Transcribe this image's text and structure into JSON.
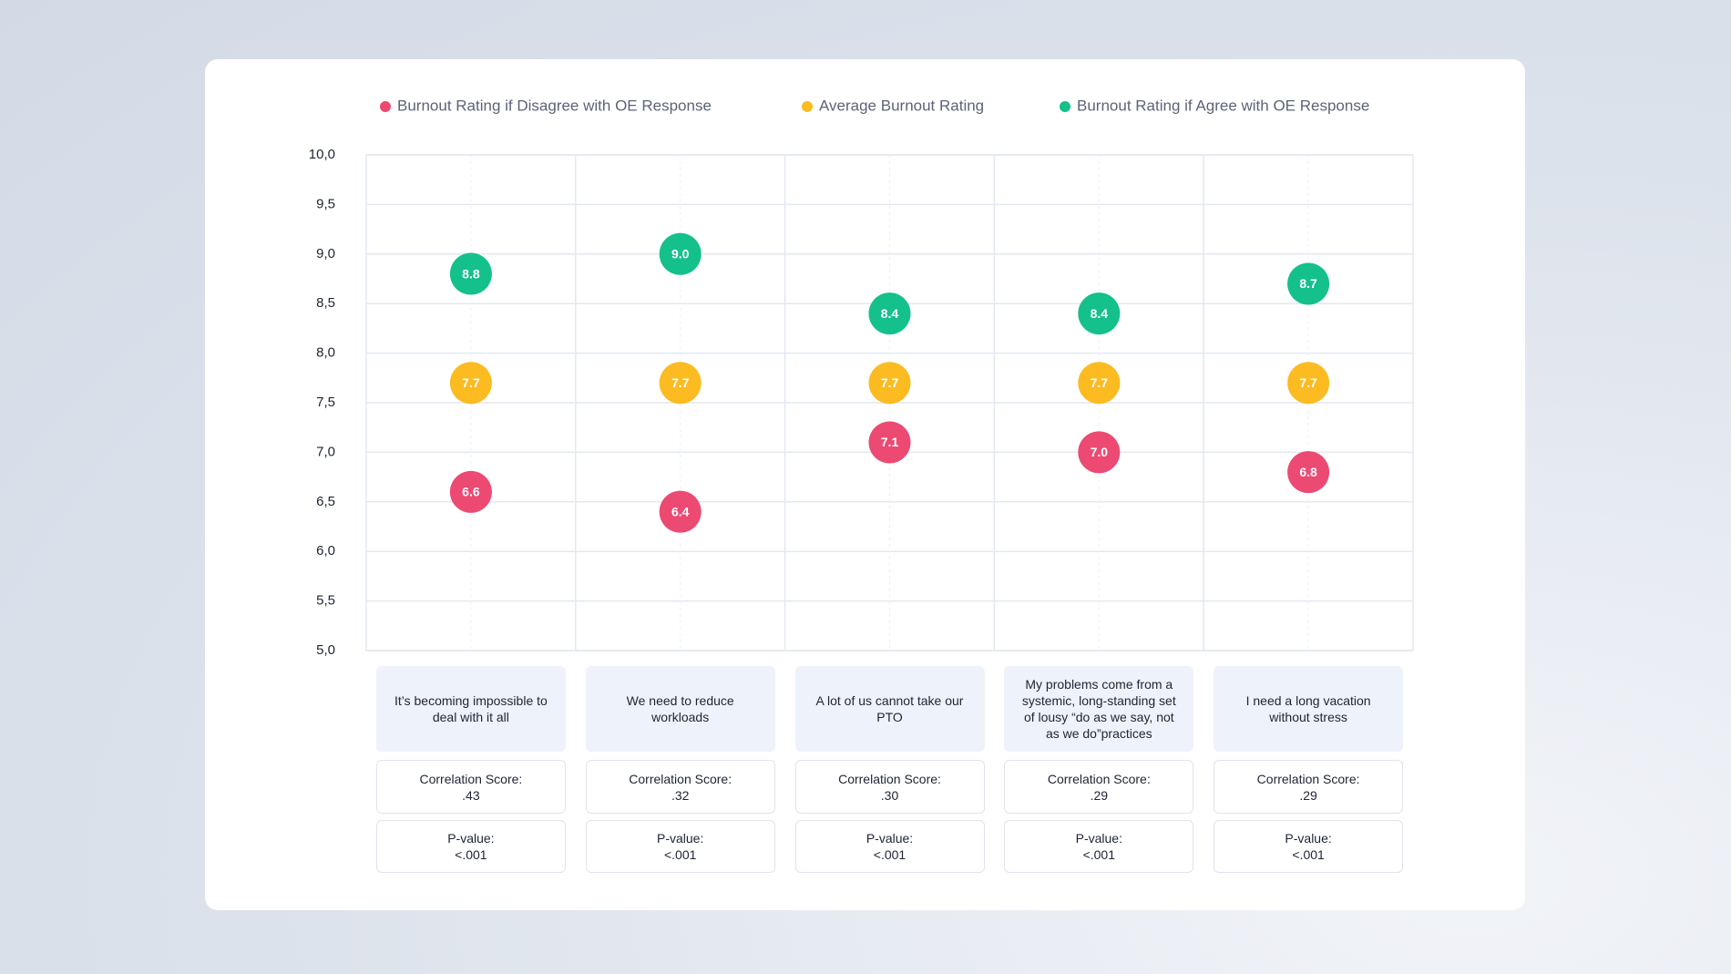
{
  "chart_data": {
    "type": "dot",
    "categories": [
      "It’s becoming impossible to deal with it all",
      "We need to reduce workloads",
      "A lot of us cannot take our PTO",
      "My problems come from a systemic, long-standing set of lousy “do as we say, not as we do”practices",
      "I need a long vacation without stress"
    ],
    "series": [
      {
        "name": "Burnout Rating if Disagree with OE Response",
        "color": "#ec4a72",
        "values": [
          6.6,
          6.4,
          7.1,
          7.0,
          6.8
        ],
        "value_labels": [
          "6.6",
          "6.4",
          "7.1",
          "7.0",
          "6.8"
        ]
      },
      {
        "name": "Average Burnout Rating",
        "color": "#fbbb21",
        "values": [
          7.7,
          7.7,
          7.7,
          7.7,
          7.7
        ],
        "value_labels": [
          "7.7",
          "7.7",
          "7.7",
          "7.7",
          "7.7"
        ]
      },
      {
        "name": "Burnout Rating if Agree with OE Response",
        "color": "#14c08c",
        "values": [
          8.8,
          9.0,
          8.4,
          8.4,
          8.7
        ],
        "value_labels": [
          "8.8",
          "9.0",
          "8.4",
          "8.4",
          "8.7"
        ]
      }
    ],
    "ylim": [
      5,
      10
    ],
    "yticks": [
      {
        "value": 5,
        "label": "5,0"
      },
      {
        "value": 5.5,
        "label": "5,5"
      },
      {
        "value": 6,
        "label": "6,0"
      },
      {
        "value": 6.5,
        "label": "6,5"
      },
      {
        "value": 7,
        "label": "7,0"
      },
      {
        "value": 7.5,
        "label": "7,5"
      },
      {
        "value": 8,
        "label": "8,0"
      },
      {
        "value": 8.5,
        "label": "8,5"
      },
      {
        "value": 9,
        "label": "9,0"
      },
      {
        "value": 9.5,
        "label": "9,5"
      },
      {
        "value": 10,
        "label": "10,0"
      }
    ],
    "grid": true,
    "legend": "top",
    "correlation_label": "Correlation Score:",
    "correlation_scores": [
      ".43",
      ".32",
      ".30",
      ".29",
      ".29"
    ],
    "p_value_label": "P-value:",
    "p_values": [
      "<.001",
      "<.001",
      "<.001",
      "<.001",
      "<.001"
    ]
  }
}
